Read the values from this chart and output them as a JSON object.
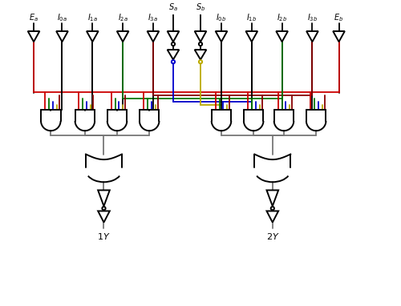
{
  "bg": "#ffffff",
  "black": "#000000",
  "red": "#cc0000",
  "green": "#007700",
  "blue": "#0000cc",
  "yellow": "#bbaa00",
  "gray": "#777777",
  "darkred": "#880000",
  "figw": 5.0,
  "figh": 3.82,
  "dpi": 100,
  "xlim": [
    0,
    10
  ],
  "ylim": [
    0,
    7.64
  ],
  "xEa": 0.55,
  "xI0a": 1.3,
  "xI1a": 2.1,
  "xI2a": 2.9,
  "xI3a": 3.7,
  "xSa": 4.25,
  "xSb": 5.05,
  "xI0b": 5.55,
  "xI1b": 6.35,
  "xI2b": 7.15,
  "xI3b": 7.95,
  "xEb": 8.7,
  "yLabelTop": 7.42,
  "yTriTop": 7.2,
  "yTriBot": 6.87,
  "ySaTop": 7.2,
  "ySaBot1": 6.87,
  "yCirc1": 6.73,
  "yTri2Top": 6.6,
  "yTri2Bot": 6.27,
  "yCirc2": 6.13,
  "ySaWireBot": 5.8,
  "yBusRed": 5.58,
  "yBusDarkRed": 5.5,
  "yBusGreen": 5.42,
  "yBusBlue": 5.34,
  "yBusYellow": 5.26,
  "yAndC": 4.85,
  "yAndH": 0.5,
  "yAndW": 0.6,
  "xAndL": [
    0.9,
    1.75,
    2.6,
    3.45
  ],
  "xAndR": [
    5.75,
    6.55,
    7.35,
    8.15
  ],
  "yOrC": 3.65,
  "yOrW": 0.85,
  "yOrH": 0.6,
  "xOrL": 2.175,
  "xOrR": 6.95,
  "yBufTop": 2.8,
  "yBufBot": 2.45,
  "yBuf2Top": 2.1,
  "yBuf2Bot": 1.75,
  "yOutLabel": 1.5,
  "tri_half": 0.16,
  "lw": 1.3,
  "lw_gate": 1.4
}
